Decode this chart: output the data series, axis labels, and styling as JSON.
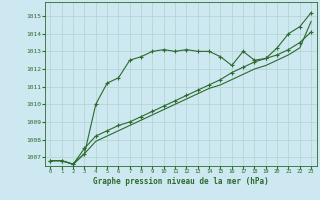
{
  "title": "Graphe pression niveau de la mer (hPa)",
  "bg_color": "#cde8f0",
  "grid_color": "#b0d4cc",
  "line_color": "#2d6a2d",
  "marker_color": "#2d6a2d",
  "xlim": [
    -0.5,
    23.5
  ],
  "ylim": [
    1006.5,
    1015.8
  ],
  "yticks": [
    1007,
    1008,
    1009,
    1010,
    1011,
    1012,
    1013,
    1014,
    1015
  ],
  "xticks": [
    0,
    1,
    2,
    3,
    4,
    5,
    6,
    7,
    8,
    9,
    10,
    11,
    12,
    13,
    14,
    15,
    16,
    17,
    18,
    19,
    20,
    21,
    22,
    23
  ],
  "series1_x": [
    0,
    1,
    2,
    3,
    4,
    5,
    6,
    7,
    8,
    9,
    10,
    11,
    12,
    13,
    14,
    15,
    16,
    17,
    18,
    19,
    20,
    21,
    22,
    23
  ],
  "series1_y": [
    1006.8,
    1006.8,
    1006.6,
    1007.2,
    1010.0,
    1011.2,
    1011.5,
    1012.5,
    1012.7,
    1013.0,
    1013.1,
    1013.0,
    1013.1,
    1013.0,
    1013.0,
    1012.7,
    1012.2,
    1013.0,
    1012.5,
    1012.6,
    1013.2,
    1014.0,
    1014.4,
    1015.2
  ],
  "series2_x": [
    0,
    1,
    2,
    3,
    4,
    5,
    6,
    7,
    8,
    9,
    10,
    11,
    12,
    13,
    14,
    15,
    16,
    17,
    18,
    19,
    20,
    21,
    22,
    23
  ],
  "series2_y": [
    1006.8,
    1006.8,
    1006.6,
    1007.5,
    1008.2,
    1008.5,
    1008.8,
    1009.0,
    1009.3,
    1009.6,
    1009.9,
    1010.2,
    1010.5,
    1010.8,
    1011.1,
    1011.4,
    1011.8,
    1012.1,
    1012.4,
    1012.6,
    1012.8,
    1013.1,
    1013.5,
    1014.1
  ],
  "series3_x": [
    0,
    1,
    2,
    3,
    4,
    5,
    6,
    7,
    8,
    9,
    10,
    11,
    12,
    13,
    14,
    15,
    16,
    17,
    18,
    19,
    20,
    21,
    22,
    23
  ],
  "series3_y": [
    1006.8,
    1006.8,
    1006.6,
    1007.2,
    1007.9,
    1008.2,
    1008.5,
    1008.8,
    1009.1,
    1009.4,
    1009.7,
    1010.0,
    1010.3,
    1010.6,
    1010.9,
    1011.1,
    1011.4,
    1011.7,
    1012.0,
    1012.2,
    1012.5,
    1012.8,
    1013.2,
    1014.7
  ]
}
